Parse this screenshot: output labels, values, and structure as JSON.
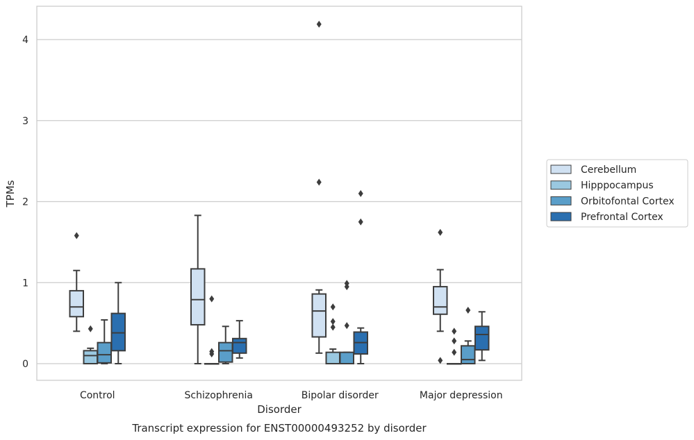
{
  "chart_data": {
    "type": "box",
    "title": "Transcript expression for ENST00000493252 by disorder",
    "xlabel": "Disorder",
    "ylabel": "TPMs",
    "ylim": [
      -0.2,
      4.4
    ],
    "yticks": [
      0,
      1,
      2,
      3,
      4
    ],
    "grid": "horizontal",
    "legend_position": "right",
    "categories": [
      "Control",
      "Schizophrenia",
      "Bipolar disorder",
      "Major depression"
    ],
    "series": [
      {
        "name": "Cerebellum",
        "color": "#d0e1f2",
        "boxes": [
          {
            "whisker_low": 0.4,
            "q1": 0.58,
            "median": 0.7,
            "q3": 0.9,
            "whisker_high": 1.15,
            "outliers": [
              1.58
            ]
          },
          {
            "whisker_low": 0.0,
            "q1": 0.48,
            "median": 0.79,
            "q3": 1.17,
            "whisker_high": 1.83,
            "outliers": []
          },
          {
            "whisker_low": 0.13,
            "q1": 0.33,
            "median": 0.65,
            "q3": 0.86,
            "whisker_high": 0.91,
            "outliers": [
              2.24,
              4.19
            ]
          },
          {
            "whisker_low": 0.4,
            "q1": 0.61,
            "median": 0.7,
            "q3": 0.95,
            "whisker_high": 1.16,
            "outliers": [
              0.04,
              1.62
            ]
          }
        ]
      },
      {
        "name": "Hipppocampus",
        "color": "#9ac8e0",
        "boxes": [
          {
            "whisker_low": 0.0,
            "q1": 0.0,
            "median": 0.1,
            "q3": 0.16,
            "whisker_high": 0.19,
            "outliers": [
              0.43
            ]
          },
          {
            "whisker_low": 0.0,
            "q1": 0.0,
            "median": 0.0,
            "q3": 0.0,
            "whisker_high": 0.0,
            "outliers": [
              0.12,
              0.15,
              0.8
            ]
          },
          {
            "whisker_low": 0.0,
            "q1": 0.0,
            "median": 0.0,
            "q3": 0.14,
            "whisker_high": 0.18,
            "outliers": [
              0.45,
              0.52,
              0.7
            ]
          },
          {
            "whisker_low": 0.0,
            "q1": 0.0,
            "median": 0.0,
            "q3": 0.0,
            "whisker_high": 0.0,
            "outliers": [
              0.14,
              0.28,
              0.4
            ]
          }
        ]
      },
      {
        "name": "Orbitofontal Cortex",
        "color": "#5a9ec9",
        "boxes": [
          {
            "whisker_low": 0.0,
            "q1": 0.01,
            "median": 0.11,
            "q3": 0.26,
            "whisker_high": 0.54,
            "outliers": []
          },
          {
            "whisker_low": 0.0,
            "q1": 0.02,
            "median": 0.16,
            "q3": 0.26,
            "whisker_high": 0.46,
            "outliers": []
          },
          {
            "whisker_low": 0.0,
            "q1": 0.0,
            "median": 0.0,
            "q3": 0.14,
            "whisker_high": 0.14,
            "outliers": [
              0.47,
              0.95,
              0.99
            ]
          },
          {
            "whisker_low": 0.0,
            "q1": 0.0,
            "median": 0.05,
            "q3": 0.22,
            "whisker_high": 0.28,
            "outliers": [
              0.66
            ]
          }
        ]
      },
      {
        "name": "Prefrontal Cortex",
        "color": "#2a6fb0",
        "boxes": [
          {
            "whisker_low": 0.0,
            "q1": 0.16,
            "median": 0.38,
            "q3": 0.62,
            "whisker_high": 1.0,
            "outliers": []
          },
          {
            "whisker_low": 0.07,
            "q1": 0.13,
            "median": 0.26,
            "q3": 0.31,
            "whisker_high": 0.53,
            "outliers": []
          },
          {
            "whisker_low": 0.0,
            "q1": 0.12,
            "median": 0.26,
            "q3": 0.39,
            "whisker_high": 0.44,
            "outliers": [
              1.75,
              2.1
            ]
          },
          {
            "whisker_low": 0.04,
            "q1": 0.17,
            "median": 0.36,
            "q3": 0.46,
            "whisker_high": 0.64,
            "outliers": []
          }
        ]
      }
    ]
  }
}
